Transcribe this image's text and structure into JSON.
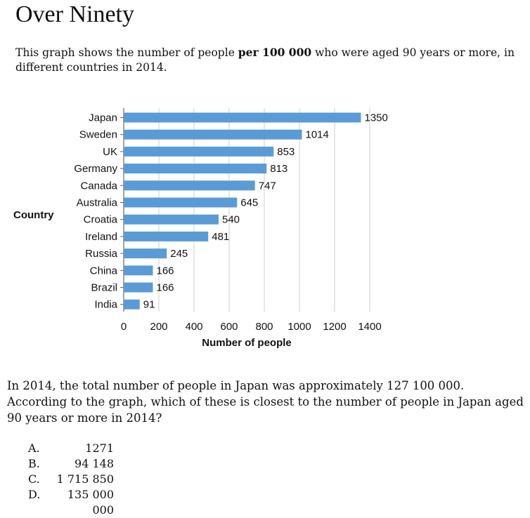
{
  "page": {
    "title": "Over Ninety",
    "intro_before": "This graph shows the number of people ",
    "intro_bold": "per 100 000",
    "intro_after": " who were aged 90 years or more, in different countries in 2014.",
    "question": "In 2014, the total number of people in Japan was approximately 127 100 000. According to the graph, which of these is closest to the number of people in Japan aged 90 years or more in 2014?",
    "options": [
      {
        "letter": "A.",
        "value": "1271"
      },
      {
        "letter": "B.",
        "value": "94 148"
      },
      {
        "letter": "C.",
        "value": "1 715 850"
      },
      {
        "letter": "D.",
        "value": "135 000 000"
      }
    ]
  },
  "chart_data": {
    "type": "bar",
    "orientation": "horizontal",
    "categories": [
      "Japan",
      "Sweden",
      "UK",
      "Germany",
      "Canada",
      "Australia",
      "Croatia",
      "Ireland",
      "Russia",
      "China",
      "Brazil",
      "India"
    ],
    "values": [
      1350,
      1014,
      853,
      813,
      747,
      645,
      540,
      481,
      245,
      166,
      166,
      91
    ],
    "xlabel": "Number of people",
    "ylabel": "Country",
    "xlim": [
      0,
      1400
    ],
    "xticks": [
      0,
      200,
      400,
      600,
      800,
      1000,
      1200,
      1400
    ],
    "grid": true,
    "bar_color": "#5b9bd5"
  }
}
